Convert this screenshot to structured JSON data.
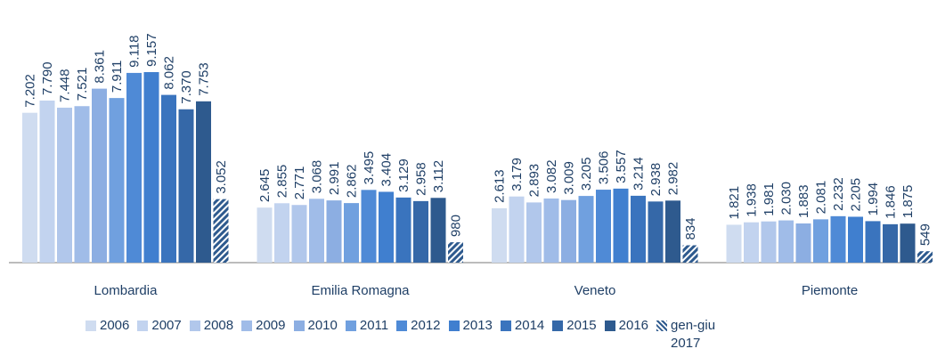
{
  "chart_data": {
    "type": "bar",
    "categories": [
      "Lombardia",
      "Emilia Romagna",
      "Veneto",
      "Piemonte"
    ],
    "series": [
      {
        "name": "2006",
        "color": "#cfdcf0",
        "values": [
          7202,
          2645,
          2613,
          1821
        ],
        "value_labels": [
          "7.202",
          "2.645",
          "2.613",
          "1.821"
        ]
      },
      {
        "name": "2007",
        "color": "#c2d3ef",
        "values": [
          7790,
          2855,
          3179,
          1938
        ],
        "value_labels": [
          "7.790",
          "2.855",
          "3.179",
          "1.938"
        ]
      },
      {
        "name": "2008",
        "color": "#b1c7eb",
        "values": [
          7448,
          2771,
          2893,
          1981
        ],
        "value_labels": [
          "7.448",
          "2.771",
          "2.893",
          "1.981"
        ]
      },
      {
        "name": "2009",
        "color": "#a0bce8",
        "values": [
          7521,
          3068,
          3082,
          2030
        ],
        "value_labels": [
          "7.521",
          "3.068",
          "3.082",
          "2.030"
        ]
      },
      {
        "name": "2010",
        "color": "#8caee2",
        "values": [
          8361,
          2991,
          3009,
          1883
        ],
        "value_labels": [
          "8.361",
          "2.991",
          "3.009",
          "1.883"
        ]
      },
      {
        "name": "2011",
        "color": "#70a0df",
        "values": [
          7911,
          2862,
          3205,
          2081
        ],
        "value_labels": [
          "7.911",
          "2.862",
          "3.205",
          "2.081"
        ]
      },
      {
        "name": "2012",
        "color": "#4f8ad6",
        "values": [
          9118,
          3495,
          3506,
          2232
        ],
        "value_labels": [
          "9.118",
          "3.495",
          "3.506",
          "2.232"
        ]
      },
      {
        "name": "2013",
        "color": "#407fcf",
        "values": [
          9157,
          3404,
          3557,
          2205
        ],
        "value_labels": [
          "9.157",
          "3.404",
          "3.557",
          "2.205"
        ]
      },
      {
        "name": "2014",
        "color": "#3a74be",
        "values": [
          8062,
          3129,
          3214,
          1994
        ],
        "value_labels": [
          "8.062",
          "3.129",
          "3.214",
          "1.994"
        ]
      },
      {
        "name": "2015",
        "color": "#3568a8",
        "values": [
          7370,
          2958,
          2938,
          1846
        ],
        "value_labels": [
          "7.370",
          "2.958",
          "2.938",
          "1.846"
        ]
      },
      {
        "name": "2016",
        "color": "#2e5a8e",
        "values": [
          7753,
          3112,
          2982,
          1875
        ],
        "value_labels": [
          "7.753",
          "3.112",
          "2.982",
          "1.875"
        ]
      },
      {
        "name": "gen-giu 2017",
        "color": "#2e5a8e",
        "pattern": "hatch",
        "values": [
          3052,
          980,
          834,
          549
        ],
        "value_labels": [
          "3.052",
          "980",
          "834",
          "549"
        ]
      }
    ]
  }
}
